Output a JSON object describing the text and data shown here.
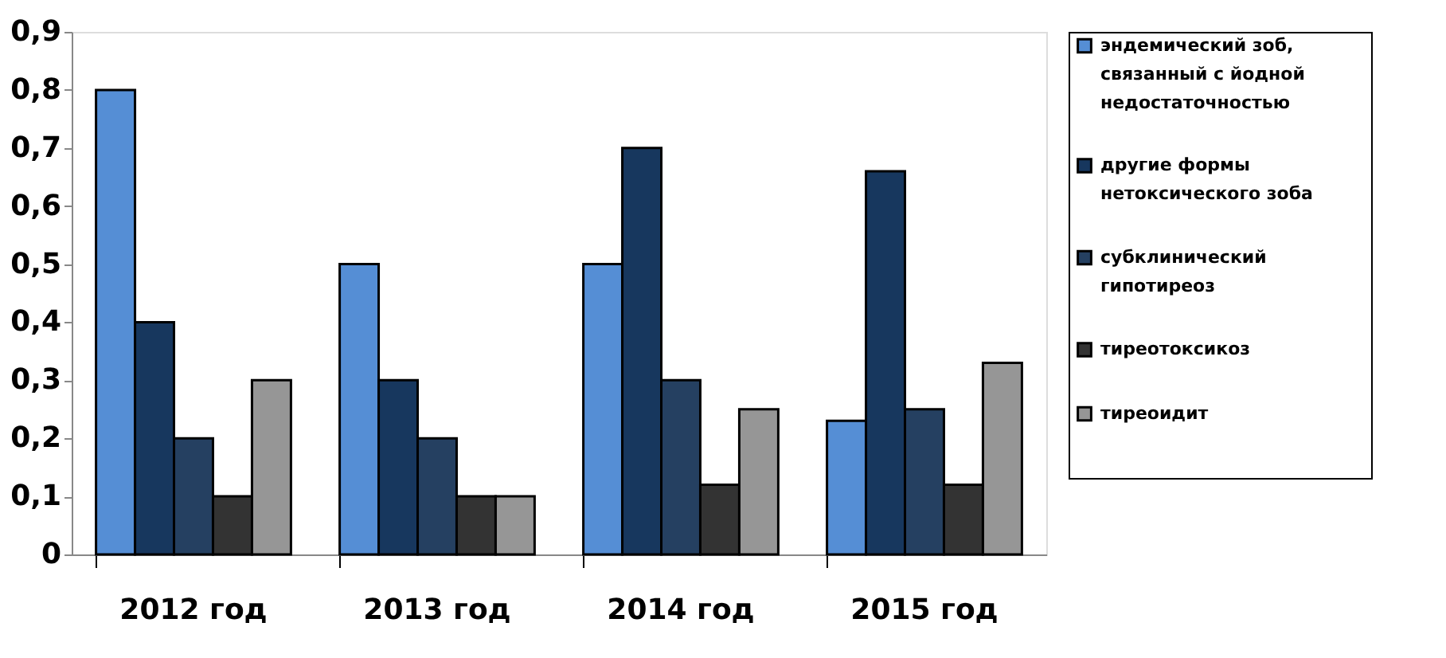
{
  "chart_data": {
    "type": "bar",
    "categories": [
      "2012 год",
      "2013 год",
      "2014 год",
      "2015 год"
    ],
    "series": [
      {
        "name": "эндемический зоб, связанный с йодной недостаточностью",
        "color": "#558ed5",
        "values": [
          0.8,
          0.5,
          0.5,
          0.23
        ]
      },
      {
        "name": "другие формы нетоксического зоба",
        "color": "#17375e",
        "values": [
          0.4,
          0.3,
          0.7,
          0.66
        ]
      },
      {
        "name": "субклинический гипотиреоз",
        "color": "#254061",
        "values": [
          0.2,
          0.2,
          0.3,
          0.25
        ]
      },
      {
        "name": "тиреотоксикоз",
        "color": "#333333",
        "values": [
          0.1,
          0.1,
          0.12,
          0.12
        ]
      },
      {
        "name": "тиреоидит",
        "color": "#969696",
        "values": [
          0.3,
          0.1,
          0.25,
          0.33
        ]
      }
    ],
    "ylim": [
      0,
      0.9
    ],
    "yticks": [
      0,
      {
        "value": 0.1,
        "label": "0,1"
      },
      {
        "value": 0.2,
        "label": "0,2"
      },
      {
        "value": 0.3,
        "label": "0,3"
      },
      {
        "value": 0.4,
        "label": "0,4"
      },
      {
        "value": 0.5,
        "label": "0,5"
      },
      {
        "value": 0.6,
        "label": "0,6"
      },
      {
        "value": 0.7,
        "label": "0,7"
      },
      {
        "value": 0.8,
        "label": "0,8"
      },
      {
        "value": 0.9,
        "label": "0,9"
      }
    ],
    "grid": false,
    "legend": "right"
  }
}
